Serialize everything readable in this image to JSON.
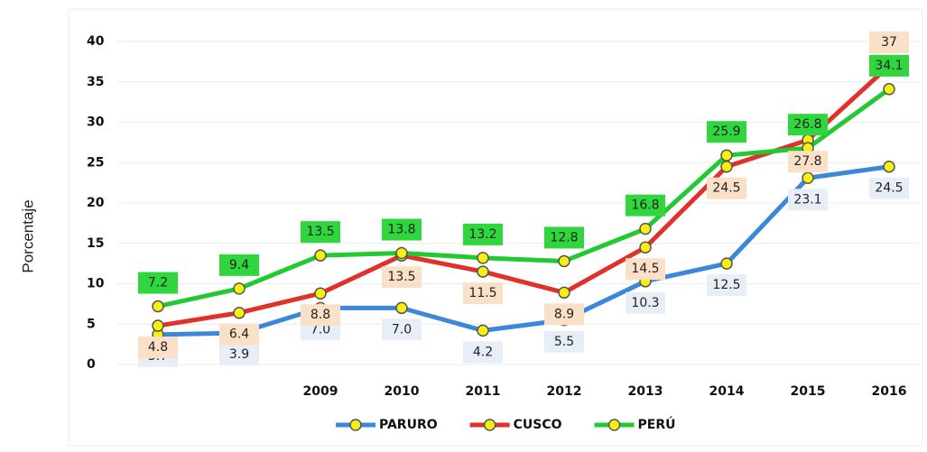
{
  "chart_data": {
    "type": "line",
    "y_label": "Porcentaje",
    "categories": [
      null,
      null,
      "2009",
      "2010",
      "2011",
      "2012",
      "2013",
      "2014",
      "2015",
      "2016"
    ],
    "ylim": [
      0,
      40
    ],
    "yticks": [
      0,
      5,
      10,
      15,
      20,
      25,
      30,
      35,
      40
    ],
    "grid": true,
    "legend": "bottom",
    "series": [
      {
        "name": "PARURO",
        "color": "#3b87d9",
        "label_color": "#e8eef7",
        "values": [
          3.7,
          3.9,
          7.0,
          7.0,
          4.2,
          5.5,
          10.3,
          12.5,
          23.1,
          24.5
        ],
        "value_labels": [
          "3.7",
          "3.9",
          "7.0",
          "7.0",
          "4.2",
          "5.5",
          "10.3",
          "12.5",
          "23.1",
          "24.5"
        ]
      },
      {
        "name": "CUSCO",
        "color": "#e0312b",
        "label_color": "#fbe0c8",
        "values": [
          4.8,
          6.4,
          8.8,
          13.5,
          11.5,
          8.9,
          14.5,
          24.5,
          27.8,
          37
        ],
        "value_labels": [
          "4.8",
          "6.4",
          "8.8",
          "13.5",
          "11.5",
          "8.9",
          "14.5",
          "24.5",
          "27.8",
          "37"
        ]
      },
      {
        "name": "PERÚ",
        "color": "#22c933",
        "label_color": "#2fd63d",
        "values": [
          7.2,
          9.4,
          13.5,
          13.8,
          13.2,
          12.8,
          16.8,
          25.9,
          26.8,
          34.1
        ],
        "value_labels": [
          "7.2",
          "9.4",
          "13.5",
          "13.8",
          "13.2",
          "12.8",
          "16.8",
          "25.9",
          "26.8",
          "34.1"
        ]
      }
    ]
  }
}
